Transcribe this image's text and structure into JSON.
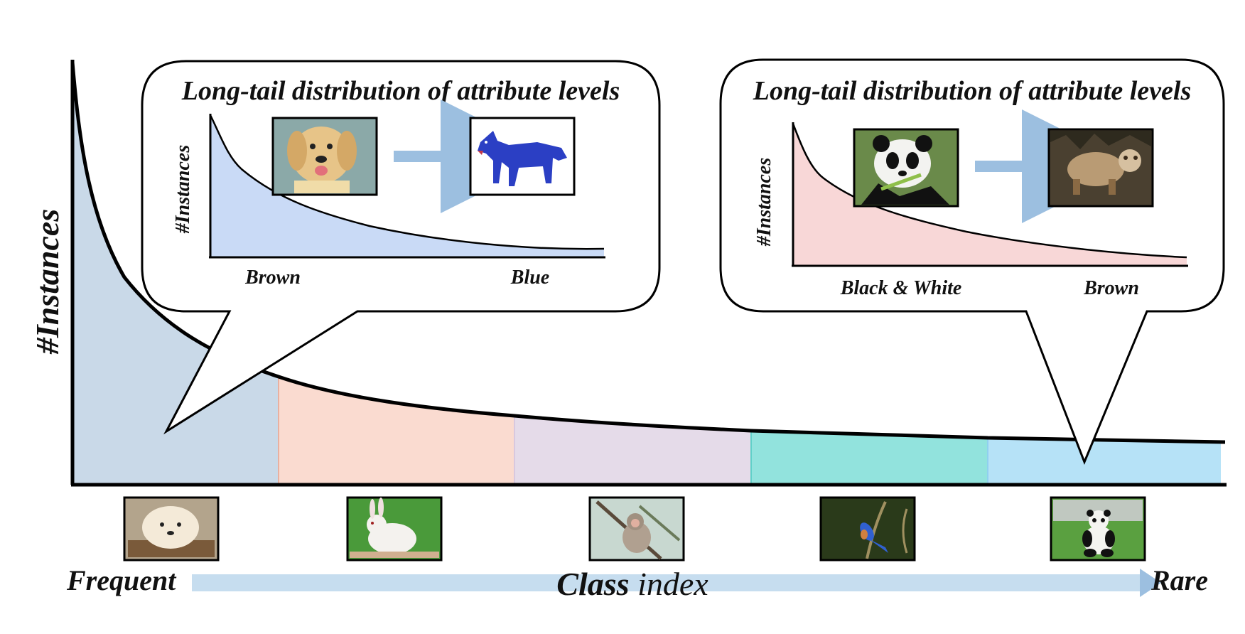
{
  "main_axis": {
    "y_label": "#Instances",
    "x_label_bold": "Class",
    "x_label_rest": " index",
    "frequent_label": "Frequent",
    "rare_label": "Rare"
  },
  "segment_colors": [
    "#c9d9e8",
    "#fadbd0",
    "#e5dbe9",
    "#92e3dd",
    "#b6e2f7"
  ],
  "class_thumbnails": [
    {
      "name": "chow-chow puppy"
    },
    {
      "name": "white rabbit"
    },
    {
      "name": "monkey"
    },
    {
      "name": "blue bird"
    },
    {
      "name": "panda"
    }
  ],
  "callouts": [
    {
      "title": "Long-tail distribution of attribute levels",
      "y_label": "#Instances",
      "left_label": "Brown",
      "right_label": "Blue",
      "fill": "#c9daf6",
      "from_image": "brown puppy",
      "to_image": "blue dog"
    },
    {
      "title": "Long-tail distribution of attribute levels",
      "y_label": "#Instances",
      "left_label": "Black & White",
      "right_label": "Brown",
      "fill": "#f8d7d7",
      "from_image": "black and white panda",
      "to_image": "brown panda"
    }
  ]
}
